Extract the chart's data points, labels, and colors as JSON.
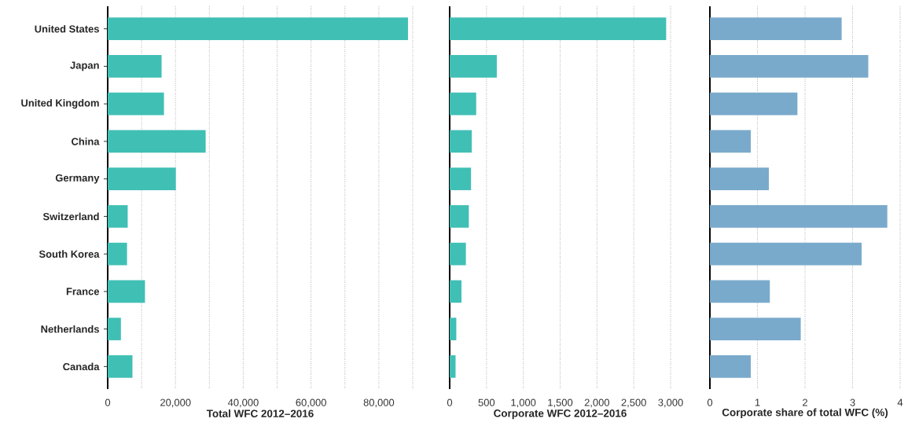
{
  "chart_data": [
    {
      "type": "bar",
      "orientation": "horizontal",
      "xlabel": "Total WFC 2012–2016",
      "categories": [
        "United States",
        "Japan",
        "United Kingdom",
        "China",
        "Germany",
        "Switzerland",
        "South Korea",
        "France",
        "Netherlands",
        "Canada"
      ],
      "values": [
        88600,
        15900,
        16600,
        28900,
        20100,
        5900,
        5700,
        11000,
        3900,
        7300
      ],
      "color": "#40bfb5",
      "xlim": [
        0,
        90000
      ],
      "xticks": [
        0,
        {
          "value": 10000,
          "label": null
        },
        {
          "value": 20000,
          "label": "20,000"
        },
        {
          "value": 30000,
          "label": null
        },
        {
          "value": 40000,
          "label": "40,000"
        },
        {
          "value": 50000,
          "label": null
        },
        {
          "value": 60000,
          "label": "60,000"
        },
        {
          "value": 70000,
          "label": null
        },
        {
          "value": 80000,
          "label": "80,000"
        },
        {
          "value": 90000,
          "label": null
        }
      ],
      "grid": "x"
    },
    {
      "type": "bar",
      "orientation": "horizontal",
      "xlabel": "Corporate WFC 2012–2016",
      "categories": [
        null,
        null,
        null,
        null,
        null,
        null,
        null,
        null,
        null,
        null
      ],
      "values": [
        2940,
        640,
        360,
        300,
        290,
        260,
        220,
        160,
        90,
        80
      ],
      "color": "#40bfb5",
      "xlim": [
        0,
        3000
      ],
      "xticks": [
        0,
        500,
        {
          "value": 1000,
          "label": "1,000"
        },
        {
          "value": 1500,
          "label": "1,500"
        },
        {
          "value": 2000,
          "label": "2,000"
        },
        {
          "value": 2500,
          "label": "2,500"
        },
        {
          "value": 3000,
          "label": "3,000"
        }
      ],
      "grid": "x",
      "tick_labels": "x"
    },
    {
      "type": "bar",
      "orientation": "horizontal",
      "xlabel": "Corporate share of total WFC (%)",
      "categories": [
        null,
        null,
        null,
        null,
        null,
        null,
        null,
        null,
        null,
        null
      ],
      "values": [
        2.77,
        3.33,
        1.84,
        0.86,
        1.24,
        3.73,
        3.19,
        1.26,
        1.91,
        0.86
      ],
      "color": "#7aaacb",
      "xlim": [
        0,
        4
      ],
      "xticks": [
        0,
        1,
        2,
        3,
        4
      ],
      "grid": "x",
      "tick_labels": "x"
    }
  ]
}
